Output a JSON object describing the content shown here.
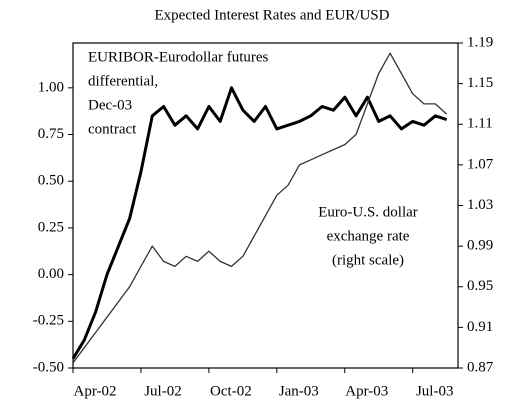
{
  "chart_data": {
    "type": "line",
    "title": "Expected Interest Rates and EUR/USD",
    "x": [
      0,
      0.5,
      1,
      1.5,
      2,
      2.5,
      3,
      3.5,
      4,
      4.5,
      5,
      5.5,
      6,
      6.5,
      7,
      7.5,
      8,
      8.5,
      9,
      9.5,
      10,
      10.5,
      11,
      11.5,
      12,
      12.5,
      13,
      13.5,
      14,
      14.5,
      15,
      15.5,
      16,
      16.5
    ],
    "xlim": [
      0,
      17
    ],
    "xticks": [
      {
        "value": 0,
        "label": "Apr-02"
      },
      {
        "value": 3,
        "label": "Jul-02"
      },
      {
        "value": 6,
        "label": "Oct-02"
      },
      {
        "value": 9,
        "label": "Jan-03"
      },
      {
        "value": 12,
        "label": "Apr-03"
      },
      {
        "value": 15,
        "label": "Jul-03"
      }
    ],
    "ylim": [
      -0.5,
      1.24
    ],
    "yticks": [
      {
        "value": -0.5,
        "label": "-0.50"
      },
      -0.25,
      {
        "value": 0,
        "label": "0.00"
      },
      0.25,
      {
        "value": 0.5,
        "label": "0.50"
      },
      0.75,
      {
        "value": 1,
        "label": "1.00"
      }
    ],
    "y2lim": [
      0.87,
      1.19
    ],
    "y2ticks": [
      0.87,
      0.91,
      0.95,
      0.99,
      1.03,
      1.07,
      1.11,
      1.15,
      1.19
    ],
    "series": [
      {
        "color": "#000000",
        "values": [
          -0.45,
          -0.35,
          -0.2,
          0.0,
          0.15,
          0.3,
          0.55,
          0.85,
          0.9,
          0.8,
          0.85,
          0.78,
          0.9,
          0.82,
          1.0,
          0.88,
          0.82,
          0.9,
          0.78,
          0.8,
          0.82,
          0.85,
          0.9,
          0.88,
          0.95,
          0.85,
          0.95,
          0.82,
          0.85,
          0.78,
          0.82,
          0.8,
          0.85,
          0.83
        ]
      },
      {
        "color": "#333333",
        "axis": "y2",
        "values": [
          0.875,
          0.89,
          0.905,
          0.92,
          0.935,
          0.95,
          0.97,
          0.99,
          0.975,
          0.97,
          0.98,
          0.975,
          0.985,
          0.975,
          0.97,
          0.98,
          1.0,
          1.02,
          1.04,
          1.05,
          1.07,
          1.075,
          1.08,
          1.085,
          1.09,
          1.1,
          1.13,
          1.16,
          1.18,
          1.16,
          1.14,
          1.13,
          1.13,
          1.12
        ]
      }
    ],
    "annotations": [
      {
        "lines": [
          "EURIBOR-Eurodollar futures",
          "differential,",
          "Dec-03",
          "contract"
        ]
      },
      {
        "lines": [
          "Euro-U.S. dollar",
          "exchange rate",
          "(right scale)"
        ]
      }
    ]
  }
}
